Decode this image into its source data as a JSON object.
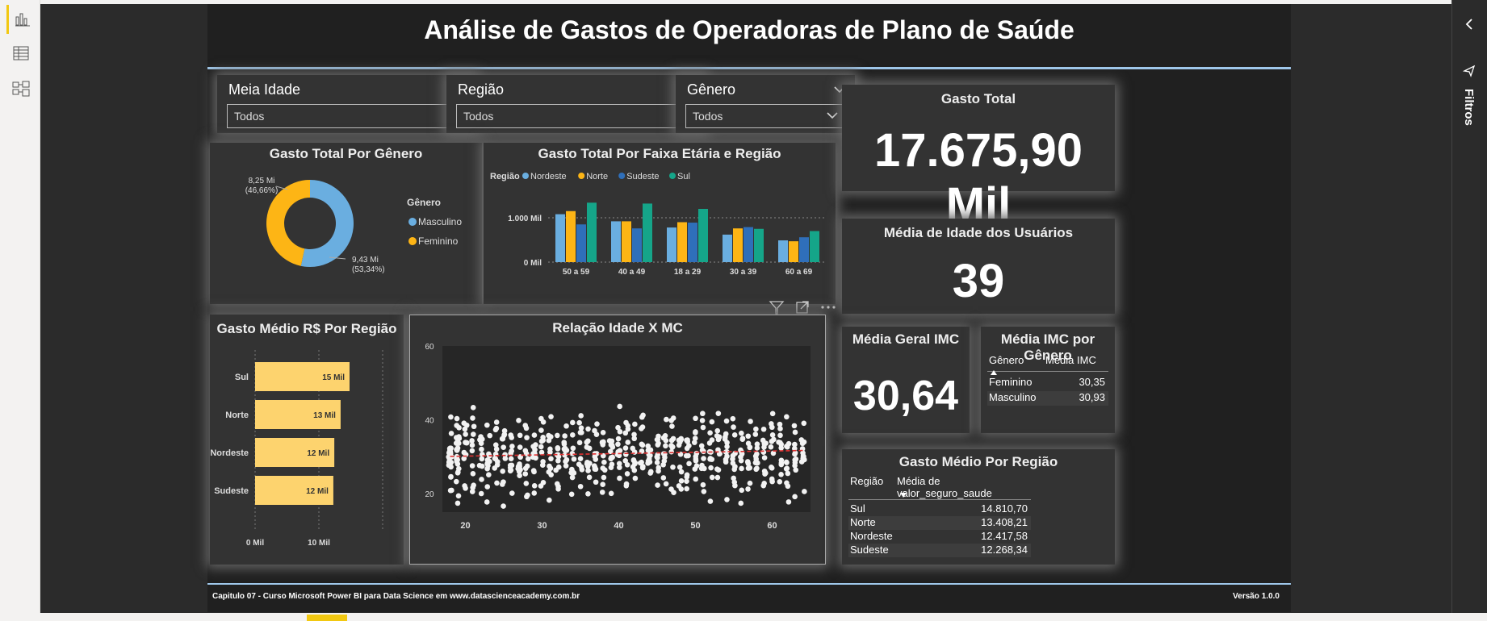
{
  "report": {
    "title": "Análise de Gastos de Operadoras de Plano de Saúde",
    "footer_left": "Capitulo 07 - Curso Microsoft Power BI para Data Science em www.datascienceacademy.com.br",
    "footer_right": "Versão 1.0.0"
  },
  "filters_pane": {
    "label": "Filtros"
  },
  "slicers": [
    {
      "header": "Meia Idade",
      "value": "Todos"
    },
    {
      "header": "Região",
      "value": "Todos"
    },
    {
      "header": "Gênero",
      "value": "Todos"
    }
  ],
  "cards": {
    "gasto_total": {
      "title": "Gasto Total",
      "value": "17.675,90 Mil"
    },
    "media_idade": {
      "title": "Média de Idade dos Usuários",
      "value": "39"
    },
    "media_imc": {
      "title": "Média Geral IMC",
      "value": "30,64"
    }
  },
  "table_imc_genero": {
    "title": "Média IMC por Gênero",
    "columns": [
      "Gênero",
      "Média IMC"
    ],
    "rows": [
      [
        "Feminino",
        "30,35"
      ],
      [
        "Masculino",
        "30,93"
      ]
    ]
  },
  "table_gasto_regiao": {
    "title": "Gasto Médio Por Região",
    "columns": [
      "Região",
      "Média de valor_seguro_saude"
    ],
    "rows": [
      [
        "Sul",
        "14.810,70"
      ],
      [
        "Norte",
        "13.408,21"
      ],
      [
        "Nordeste",
        "12.417,58"
      ],
      [
        "Sudeste",
        "12.268,34"
      ]
    ]
  },
  "chart_data": [
    {
      "id": "donut",
      "type": "pie",
      "title": "Gasto Total Por Gênero",
      "legend_title": "Gênero",
      "categories": [
        "Masculino",
        "Feminino"
      ],
      "values": [
        9.43,
        8.25
      ],
      "labels": [
        [
          "9,43 Mi",
          "(53,34%)"
        ],
        [
          "8,25 Mi",
          "(46,66%)"
        ]
      ],
      "colors": [
        "#6aaee0",
        "#fdb515"
      ]
    },
    {
      "id": "grouped",
      "type": "bar",
      "title": "Gasto Total Por Faixa Etária e Região",
      "legend_title": "Região",
      "categories": [
        "50 a 59",
        "40 a 49",
        "18 a 29",
        "30 a 39",
        "60 a 69"
      ],
      "series": [
        {
          "name": "Nordeste",
          "color": "#6aaee0",
          "values": [
            1080,
            920,
            780,
            620,
            490
          ]
        },
        {
          "name": "Norte",
          "color": "#fdb515",
          "values": [
            1150,
            920,
            900,
            760,
            470
          ]
        },
        {
          "name": "Sudeste",
          "color": "#2f6fba",
          "values": [
            850,
            760,
            890,
            790,
            560
          ]
        },
        {
          "name": "Sul",
          "color": "#15a589",
          "values": [
            1340,
            1320,
            1200,
            750,
            700
          ]
        }
      ],
      "yticks": [
        "0 Mil",
        "1.000 Mil"
      ],
      "ylim": [
        0,
        1600
      ]
    },
    {
      "id": "hbar",
      "type": "bar",
      "orientation": "horizontal",
      "title": "Gasto Médio R$ Por Região",
      "categories": [
        "Sul",
        "Norte",
        "Nordeste",
        "Sudeste"
      ],
      "values": [
        14.81,
        13.41,
        12.42,
        12.27
      ],
      "labels": [
        "15 Mil",
        "13 Mil",
        "12 Mil",
        "12 Mil"
      ],
      "xticks": [
        "0 Mil",
        "10 Mil"
      ],
      "xlim": [
        0,
        20
      ],
      "color": "#fdd36e"
    },
    {
      "id": "scatter",
      "type": "scatter",
      "title": "Relação Idade X MC",
      "xlim": [
        17,
        65
      ],
      "ylim": [
        15,
        60
      ],
      "xticks": [
        20,
        30,
        40,
        50,
        60
      ],
      "yticks": [
        20,
        40,
        60
      ],
      "trend": [
        [
          18,
          30.1
        ],
        [
          64,
          31.7
        ]
      ],
      "point_count": 1338
    }
  ]
}
